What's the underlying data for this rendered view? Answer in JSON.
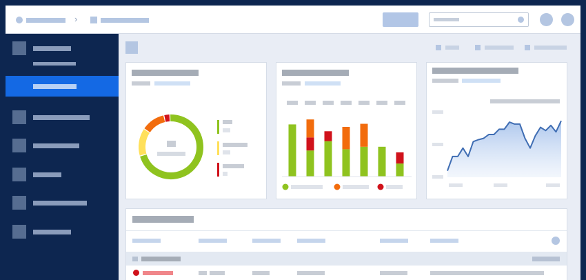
{
  "sidebar": {
    "items": [
      {
        "id": "overview",
        "active": false
      },
      {
        "id": "overview-sub",
        "active": true
      },
      {
        "id": "item-2",
        "active": false
      },
      {
        "id": "item-3",
        "active": false
      },
      {
        "id": "item-4",
        "active": false
      },
      {
        "id": "item-5",
        "active": false
      },
      {
        "id": "item-6",
        "active": false
      }
    ]
  },
  "colors": {
    "navy": "#0d2650",
    "accent": "#1469e4",
    "green": "#8fc31f",
    "orange": "#f26c0d",
    "red": "#d0121b",
    "yellow": "#ffe05a",
    "line": "#3f6db3",
    "placeholder": "#b4c6e2"
  },
  "icons": [
    "chevron-right-icon",
    "search-icon",
    "user-icon",
    "settings-icon"
  ],
  "chart_data": [
    {
      "type": "pie",
      "donut": true,
      "values": [
        71,
        14,
        12,
        3
      ],
      "series_colors": [
        "#8fc31f",
        "#ffe05a",
        "#f26c0d",
        "#d0121b"
      ],
      "legend_colors": [
        "#8fc31f",
        "#ffe05a",
        "#d0121b"
      ]
    },
    {
      "type": "bar",
      "stacked": true,
      "categories_count": 7,
      "series": [
        {
          "color": "#8fc31f",
          "values": [
            84,
            42,
            57,
            44,
            48,
            48,
            21
          ]
        },
        {
          "color": "#d0121b",
          "values": [
            0,
            21,
            16,
            0,
            0,
            0,
            18
          ]
        },
        {
          "color": "#f26c0d",
          "values": [
            0,
            29,
            0,
            36,
            37,
            0,
            0
          ]
        }
      ],
      "ylim": [
        0,
        100
      ],
      "legend_colors": [
        "#8fc31f",
        "#f26c0d",
        "#d0121b"
      ]
    },
    {
      "type": "area",
      "x": [
        0,
        1,
        2,
        3,
        4,
        5,
        6,
        7,
        8,
        9,
        10,
        11,
        12,
        13,
        14,
        15,
        16,
        17,
        18,
        19,
        20,
        21,
        22
      ],
      "y": [
        10,
        32,
        32,
        45,
        32,
        55,
        58,
        60,
        66,
        66,
        74,
        74,
        85,
        82,
        82,
        60,
        45,
        64,
        77,
        72,
        80,
        70,
        87
      ],
      "ylim": [
        0,
        100
      ],
      "color": "#3f6db3"
    }
  ]
}
